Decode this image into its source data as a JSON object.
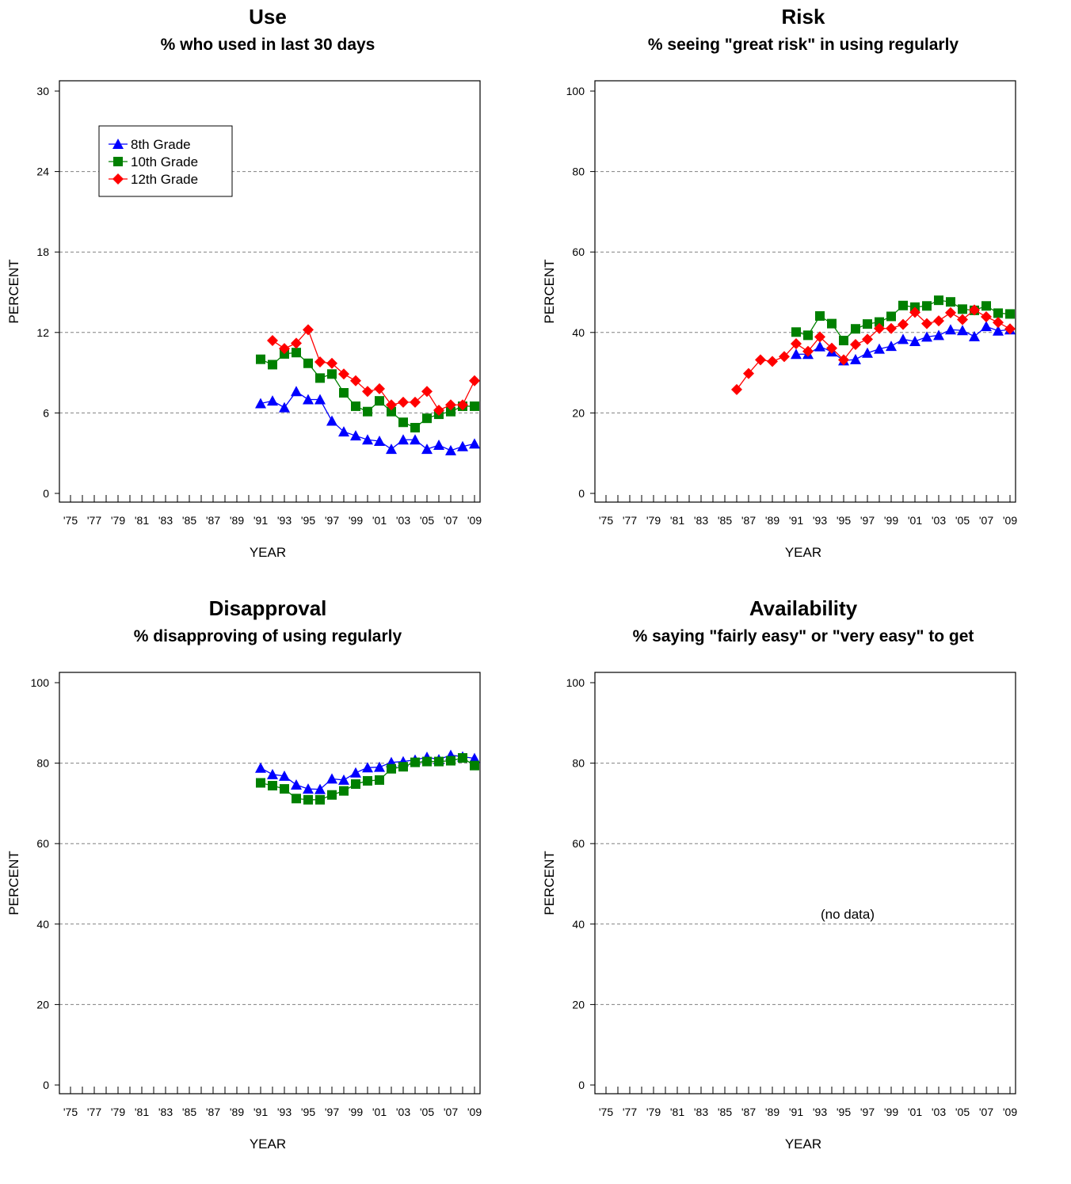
{
  "colors": {
    "grade8": "#0000ff",
    "grade10": "#008000",
    "grade12": "#ff0000",
    "grid": "#808080"
  },
  "chart_data": [
    {
      "id": "use",
      "type": "line",
      "title": "Use",
      "subtitle": "% who used in last 30 days",
      "xlabel": "YEAR",
      "ylabel": "PERCENT",
      "xlim": [
        1975,
        2009
      ],
      "ylim": [
        0,
        30
      ],
      "yticks": [
        0,
        6,
        12,
        18,
        24,
        30
      ],
      "xtick_labels": [
        "'75",
        "'77",
        "'79",
        "'81",
        "'83",
        "'85",
        "'87",
        "'89",
        "'91",
        "'93",
        "'95",
        "'97",
        "'99",
        "'01",
        "'03",
        "'05",
        "'07",
        "'09"
      ],
      "grid": true,
      "legend": "top-left",
      "nodata_text": "",
      "series": [
        {
          "name": "8th Grade",
          "marker": "triangle",
          "color": "#0000ff",
          "x": [
            1991,
            1992,
            1993,
            1994,
            1995,
            1996,
            1997,
            1998,
            1999,
            2000,
            2001,
            2002,
            2003,
            2004,
            2005,
            2006,
            2007,
            2008,
            2009
          ],
          "values": [
            6.7,
            6.9,
            6.4,
            7.6,
            7.0,
            7.0,
            5.4,
            4.6,
            4.3,
            4.0,
            3.9,
            3.3,
            4.0,
            4.0,
            3.3,
            3.6,
            3.2,
            3.5,
            3.7
          ]
        },
        {
          "name": "10th Grade",
          "marker": "square",
          "color": "#008000",
          "x": [
            1991,
            1992,
            1993,
            1994,
            1995,
            1996,
            1997,
            1998,
            1999,
            2000,
            2001,
            2002,
            2003,
            2004,
            2005,
            2006,
            2007,
            2008,
            2009
          ],
          "values": [
            10.0,
            9.6,
            10.4,
            10.5,
            9.7,
            8.6,
            8.9,
            7.5,
            6.5,
            6.1,
            6.9,
            6.1,
            5.3,
            4.9,
            5.6,
            5.9,
            6.1,
            6.5,
            6.5
          ]
        },
        {
          "name": "12th Grade",
          "marker": "diamond",
          "color": "#ff0000",
          "x": [
            1992,
            1993,
            1994,
            1995,
            1996,
            1997,
            1998,
            1999,
            2000,
            2001,
            2002,
            2003,
            2004,
            2005,
            2006,
            2007,
            2008,
            2009
          ],
          "values": [
            11.4,
            10.8,
            11.2,
            12.2,
            9.8,
            9.7,
            8.9,
            8.4,
            7.6,
            7.8,
            6.6,
            6.8,
            6.8,
            7.6,
            6.2,
            6.6,
            6.6,
            8.4
          ]
        }
      ]
    },
    {
      "id": "risk",
      "type": "line",
      "title": "Risk",
      "subtitle": "% seeing \"great risk\" in using regularly",
      "xlabel": "YEAR",
      "ylabel": "PERCENT",
      "xlim": [
        1975,
        2009
      ],
      "ylim": [
        0,
        100
      ],
      "yticks": [
        0,
        20,
        40,
        60,
        80,
        100
      ],
      "xtick_labels": [
        "'75",
        "'77",
        "'79",
        "'81",
        "'83",
        "'85",
        "'87",
        "'89",
        "'91",
        "'93",
        "'95",
        "'97",
        "'99",
        "'01",
        "'03",
        "'05",
        "'07",
        "'09"
      ],
      "grid": true,
      "legend": "",
      "nodata_text": "",
      "series": [
        {
          "name": "8th Grade",
          "marker": "triangle",
          "color": "#0000ff",
          "x": [
            1991,
            1992,
            1993,
            1994,
            1995,
            1996,
            1997,
            1998,
            1999,
            2000,
            2001,
            2002,
            2003,
            2004,
            2005,
            2006,
            2007,
            2008,
            2009
          ],
          "values": [
            34.6,
            34.6,
            36.5,
            35.2,
            33.0,
            33.3,
            34.9,
            35.9,
            36.6,
            38.3,
            37.8,
            38.9,
            39.3,
            40.7,
            40.5,
            39.0,
            41.5,
            40.4,
            40.7
          ]
        },
        {
          "name": "10th Grade",
          "marker": "square",
          "color": "#008000",
          "x": [
            1991,
            1992,
            1993,
            1994,
            1995,
            1996,
            1997,
            1998,
            1999,
            2000,
            2001,
            2002,
            2003,
            2004,
            2005,
            2006,
            2007,
            2008,
            2009
          ],
          "values": [
            40.1,
            39.3,
            44.1,
            42.2,
            38.0,
            40.9,
            42.1,
            42.6,
            44.0,
            46.7,
            46.3,
            46.6,
            48.0,
            47.6,
            45.8,
            45.5,
            46.6,
            44.8,
            44.6
          ]
        },
        {
          "name": "12th Grade",
          "marker": "diamond",
          "color": "#ff0000",
          "x": [
            1986,
            1987,
            1988,
            1989,
            1990,
            1991,
            1992,
            1993,
            1994,
            1995,
            1996,
            1997,
            1998,
            1999,
            2000,
            2001,
            2002,
            2003,
            2004,
            2005,
            2006,
            2007,
            2008,
            2009
          ],
          "values": [
            25.8,
            29.8,
            33.2,
            32.8,
            34.0,
            37.2,
            35.3,
            38.9,
            36.1,
            33.2,
            37.0,
            38.3,
            41.0,
            41.0,
            42.0,
            45.0,
            42.2,
            42.9,
            44.9,
            43.2,
            45.6,
            43.9,
            42.5,
            40.9
          ]
        }
      ]
    },
    {
      "id": "disapproval",
      "type": "line",
      "title": "Disapproval",
      "subtitle": "% disapproving of using regularly",
      "xlabel": "YEAR",
      "ylabel": "PERCENT",
      "xlim": [
        1975,
        2009
      ],
      "ylim": [
        0,
        100
      ],
      "yticks": [
        0,
        20,
        40,
        60,
        80,
        100
      ],
      "xtick_labels": [
        "'75",
        "'77",
        "'79",
        "'81",
        "'83",
        "'85",
        "'87",
        "'89",
        "'91",
        "'93",
        "'95",
        "'97",
        "'99",
        "'01",
        "'03",
        "'05",
        "'07",
        "'09"
      ],
      "grid": true,
      "legend": "",
      "nodata_text": "",
      "series": [
        {
          "name": "8th Grade",
          "marker": "triangle",
          "color": "#0000ff",
          "x": [
            1991,
            1992,
            1993,
            1994,
            1995,
            1996,
            1997,
            1998,
            1999,
            2000,
            2001,
            2002,
            2003,
            2004,
            2005,
            2006,
            2007,
            2008,
            2009
          ],
          "values": [
            78.8,
            77.2,
            76.8,
            74.6,
            73.6,
            73.5,
            76.1,
            75.8,
            77.6,
            78.9,
            79.0,
            80.2,
            80.4,
            80.8,
            81.5,
            80.9,
            82.0,
            81.6,
            81.2
          ]
        },
        {
          "name": "10th Grade",
          "marker": "square",
          "color": "#008000",
          "x": [
            1991,
            1992,
            1993,
            1994,
            1995,
            1996,
            1997,
            1998,
            1999,
            2000,
            2001,
            2002,
            2003,
            2004,
            2005,
            2006,
            2007,
            2008,
            2009
          ],
          "values": [
            75.1,
            74.4,
            73.6,
            71.2,
            70.9,
            70.9,
            72.1,
            73.1,
            74.8,
            75.6,
            75.8,
            78.6,
            79.1,
            80.2,
            80.4,
            80.4,
            80.6,
            81.3,
            79.4
          ]
        }
      ]
    },
    {
      "id": "availability",
      "type": "line",
      "title": "Availability",
      "subtitle": "% saying \"fairly easy\" or \"very easy\" to get",
      "xlabel": "YEAR",
      "ylabel": "PERCENT",
      "xlim": [
        1975,
        2009
      ],
      "ylim": [
        0,
        100
      ],
      "yticks": [
        0,
        20,
        40,
        60,
        80,
        100
      ],
      "xtick_labels": [
        "'75",
        "'77",
        "'79",
        "'81",
        "'83",
        "'85",
        "'87",
        "'89",
        "'91",
        "'93",
        "'95",
        "'97",
        "'99",
        "'01",
        "'03",
        "'05",
        "'07",
        "'09"
      ],
      "grid": true,
      "legend": "",
      "nodata_text": "(no data)",
      "series": []
    }
  ]
}
